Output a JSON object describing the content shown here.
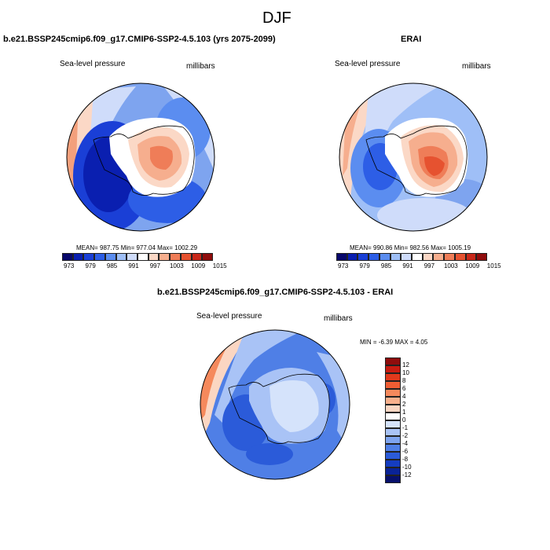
{
  "figure": {
    "title": "DJF"
  },
  "panels": [
    {
      "case": "b.e21.BSSP245cmip6.f09_g17.CMIP6-SSP2-4.5.103 (yrs 2075-2099)",
      "variable": "Sea-level pressure",
      "units": "millibars",
      "stats": "MEAN= 987.75  Min= 977.04  Max= 1002.29"
    },
    {
      "case": "ERAI",
      "variable": "Sea-level pressure",
      "units": "millibars",
      "stats": "MEAN= 990.86  Min= 982.56  Max= 1005.19"
    },
    {
      "case": "b.e21.BSSP245cmip6.f09_g17.CMIP6-SSP2-4.5.103 - ERAI",
      "variable": "Sea-level pressure",
      "units": "millibars",
      "stats": "MIN = -6.39 MAX =   4.05"
    }
  ],
  "colorbar_abs": {
    "labels": [
      "973",
      "979",
      "985",
      "991",
      "997",
      "1003",
      "1009",
      "1015"
    ],
    "colors": [
      "#08086b",
      "#0a1fb0",
      "#1a3fd6",
      "#2d5ee6",
      "#5b8df0",
      "#9fbff7",
      "#cfdcfa",
      "#ffffff",
      "#fbd8c6",
      "#f6ae8e",
      "#ef7d58",
      "#e65230",
      "#c8281a",
      "#8f0d0d"
    ]
  },
  "colorbar_diff": {
    "labels": [
      "12",
      "10",
      "8",
      "6",
      "4",
      "2",
      "1",
      "0",
      "-1",
      "-2",
      "-4",
      "-6",
      "-8",
      "-10",
      "-12"
    ],
    "colors": [
      "#8f0d0d",
      "#c81c12",
      "#e2391c",
      "#ef5d33",
      "#f5895c",
      "#f8b08c",
      "#fbd6c2",
      "#ffffff",
      "#d5e3fb",
      "#a9c3f6",
      "#7ea4ef",
      "#4f7fe6",
      "#2b5bd9",
      "#153dc0",
      "#0a2397",
      "#07106b"
    ]
  }
}
